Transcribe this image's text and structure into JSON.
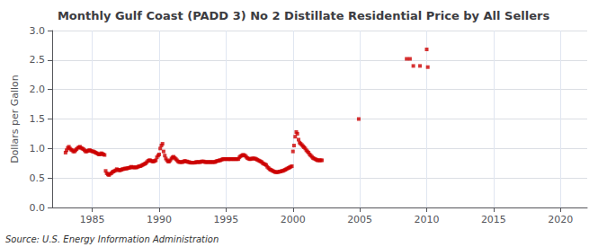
{
  "chart_data": {
    "type": "scatter",
    "title": "Monthly Gulf Coast (PADD 3) No 2 Distillate Residential Price by All Sellers",
    "ylabel": "Dollars per Gallon",
    "annotations": [
      "Source: U.S. Energy Information Administration"
    ],
    "color": "#cc0000",
    "marker": "square",
    "grid": true,
    "xlim": [
      1982,
      2022
    ],
    "ylim": [
      0.0,
      3.0
    ],
    "xticks": [
      1985,
      1990,
      1995,
      2000,
      2005,
      2010,
      2015,
      2020
    ],
    "yticks": [
      {
        "value": 0,
        "label": "0.0"
      },
      0.5,
      {
        "value": 1,
        "label": "1.0"
      },
      1.5,
      {
        "value": 2,
        "label": "2.0"
      },
      2.5,
      {
        "value": 3,
        "label": "3.0"
      }
    ],
    "x": [
      1983.0,
      1983.08,
      1983.17,
      1983.25,
      1983.33,
      1983.42,
      1983.5,
      1983.58,
      1983.67,
      1983.75,
      1983.83,
      1983.92,
      1984.0,
      1984.08,
      1984.17,
      1984.25,
      1984.33,
      1984.42,
      1984.5,
      1984.58,
      1984.67,
      1984.75,
      1984.83,
      1984.92,
      1985.0,
      1985.08,
      1985.17,
      1985.25,
      1985.33,
      1985.42,
      1985.5,
      1985.58,
      1985.67,
      1985.75,
      1985.83,
      1985.92,
      1986.0,
      1986.08,
      1986.17,
      1986.25,
      1986.33,
      1986.42,
      1986.5,
      1986.58,
      1986.67,
      1986.75,
      1986.83,
      1986.92,
      1987.0,
      1987.08,
      1987.17,
      1987.25,
      1987.33,
      1987.42,
      1987.5,
      1987.58,
      1987.67,
      1987.75,
      1987.83,
      1987.92,
      1988.0,
      1988.08,
      1988.17,
      1988.25,
      1988.33,
      1988.42,
      1988.5,
      1988.58,
      1988.67,
      1988.75,
      1988.83,
      1988.92,
      1989.0,
      1989.08,
      1989.17,
      1989.25,
      1989.33,
      1989.42,
      1989.5,
      1989.58,
      1989.67,
      1989.75,
      1989.83,
      1989.92,
      1990.0,
      1990.08,
      1990.17,
      1990.25,
      1990.33,
      1990.42,
      1990.5,
      1990.58,
      1990.67,
      1990.75,
      1990.83,
      1990.92,
      1991.0,
      1991.08,
      1991.17,
      1991.25,
      1991.33,
      1991.42,
      1991.5,
      1991.58,
      1991.67,
      1991.75,
      1991.83,
      1991.92,
      1992.0,
      1992.08,
      1992.17,
      1992.25,
      1992.33,
      1992.42,
      1992.5,
      1992.58,
      1992.67,
      1992.75,
      1992.83,
      1992.92,
      1993.0,
      1993.08,
      1993.17,
      1993.25,
      1993.33,
      1993.42,
      1993.5,
      1993.58,
      1993.67,
      1993.75,
      1993.83,
      1993.92,
      1994.0,
      1994.08,
      1994.17,
      1994.25,
      1994.33,
      1994.42,
      1994.5,
      1994.58,
      1994.67,
      1994.75,
      1994.83,
      1994.92,
      1995.0,
      1995.08,
      1995.17,
      1995.25,
      1995.33,
      1995.42,
      1995.5,
      1995.58,
      1995.67,
      1995.75,
      1995.83,
      1995.92,
      1996.0,
      1996.08,
      1996.17,
      1996.25,
      1996.33,
      1996.42,
      1996.5,
      1996.58,
      1996.67,
      1996.75,
      1996.83,
      1996.92,
      1997.0,
      1997.08,
      1997.17,
      1997.25,
      1997.33,
      1997.42,
      1997.5,
      1997.58,
      1997.67,
      1997.75,
      1997.83,
      1997.92,
      1998.0,
      1998.08,
      1998.17,
      1998.25,
      1998.33,
      1998.42,
      1998.5,
      1998.58,
      1998.67,
      1998.75,
      1998.83,
      1998.92,
      1999.0,
      1999.08,
      1999.17,
      1999.25,
      1999.33,
      1999.42,
      1999.5,
      1999.58,
      1999.67,
      1999.75,
      1999.83,
      1999.92,
      2000.0,
      2000.08,
      2000.17,
      2000.25,
      2000.33,
      2000.42,
      2000.5,
      2000.58,
      2000.67,
      2000.75,
      2000.83,
      2000.92,
      2001.0,
      2001.08,
      2001.17,
      2001.25,
      2001.33,
      2001.42,
      2001.5,
      2001.58,
      2001.67,
      2001.75,
      2001.83,
      2001.92,
      2002.0,
      2002.08,
      2002.17,
      2004.92,
      2008.5,
      2008.75,
      2009.0,
      2009.5,
      2010.0,
      2010.08
    ],
    "values": [
      0.93,
      0.97,
      1.01,
      1.03,
      1.0,
      0.98,
      0.97,
      0.95,
      0.95,
      0.97,
      0.99,
      1.01,
      1.02,
      1.03,
      1.01,
      1.0,
      0.99,
      0.97,
      0.95,
      0.95,
      0.96,
      0.97,
      0.97,
      0.96,
      0.95,
      0.95,
      0.94,
      0.93,
      0.92,
      0.91,
      0.9,
      0.9,
      0.92,
      0.91,
      0.9,
      0.89,
      0.62,
      0.58,
      0.56,
      0.55,
      0.57,
      0.58,
      0.6,
      0.61,
      0.62,
      0.63,
      0.65,
      0.64,
      0.63,
      0.63,
      0.64,
      0.65,
      0.65,
      0.66,
      0.66,
      0.66,
      0.67,
      0.67,
      0.68,
      0.69,
      0.68,
      0.68,
      0.68,
      0.68,
      0.68,
      0.69,
      0.7,
      0.7,
      0.71,
      0.72,
      0.73,
      0.74,
      0.75,
      0.77,
      0.79,
      0.8,
      0.8,
      0.79,
      0.78,
      0.78,
      0.79,
      0.8,
      0.85,
      0.88,
      0.9,
      1.0,
      1.05,
      1.08,
      0.95,
      0.88,
      0.83,
      0.8,
      0.78,
      0.78,
      0.8,
      0.83,
      0.85,
      0.86,
      0.84,
      0.82,
      0.8,
      0.78,
      0.77,
      0.77,
      0.77,
      0.77,
      0.78,
      0.79,
      0.78,
      0.78,
      0.77,
      0.77,
      0.76,
      0.76,
      0.76,
      0.76,
      0.76,
      0.77,
      0.77,
      0.77,
      0.77,
      0.77,
      0.78,
      0.78,
      0.78,
      0.77,
      0.77,
      0.77,
      0.77,
      0.77,
      0.77,
      0.77,
      0.77,
      0.77,
      0.77,
      0.78,
      0.79,
      0.79,
      0.8,
      0.8,
      0.81,
      0.82,
      0.82,
      0.82,
      0.82,
      0.82,
      0.82,
      0.82,
      0.82,
      0.82,
      0.82,
      0.82,
      0.82,
      0.82,
      0.82,
      0.82,
      0.85,
      0.87,
      0.88,
      0.89,
      0.89,
      0.88,
      0.86,
      0.84,
      0.83,
      0.82,
      0.82,
      0.83,
      0.83,
      0.83,
      0.83,
      0.82,
      0.81,
      0.8,
      0.79,
      0.78,
      0.77,
      0.75,
      0.74,
      0.73,
      0.72,
      0.69,
      0.67,
      0.65,
      0.64,
      0.63,
      0.62,
      0.61,
      0.6,
      0.6,
      0.6,
      0.6,
      0.61,
      0.61,
      0.62,
      0.62,
      0.63,
      0.64,
      0.65,
      0.66,
      0.67,
      0.68,
      0.69,
      0.7,
      0.95,
      1.05,
      1.2,
      1.28,
      1.25,
      1.15,
      1.1,
      1.08,
      1.06,
      1.04,
      1.02,
      1.0,
      0.97,
      0.95,
      0.93,
      0.9,
      0.88,
      0.86,
      0.84,
      0.83,
      0.82,
      0.81,
      0.8,
      0.8,
      0.8,
      0.8,
      0.8,
      1.5,
      2.52,
      2.52,
      2.4,
      2.4,
      2.68,
      2.38
    ]
  }
}
